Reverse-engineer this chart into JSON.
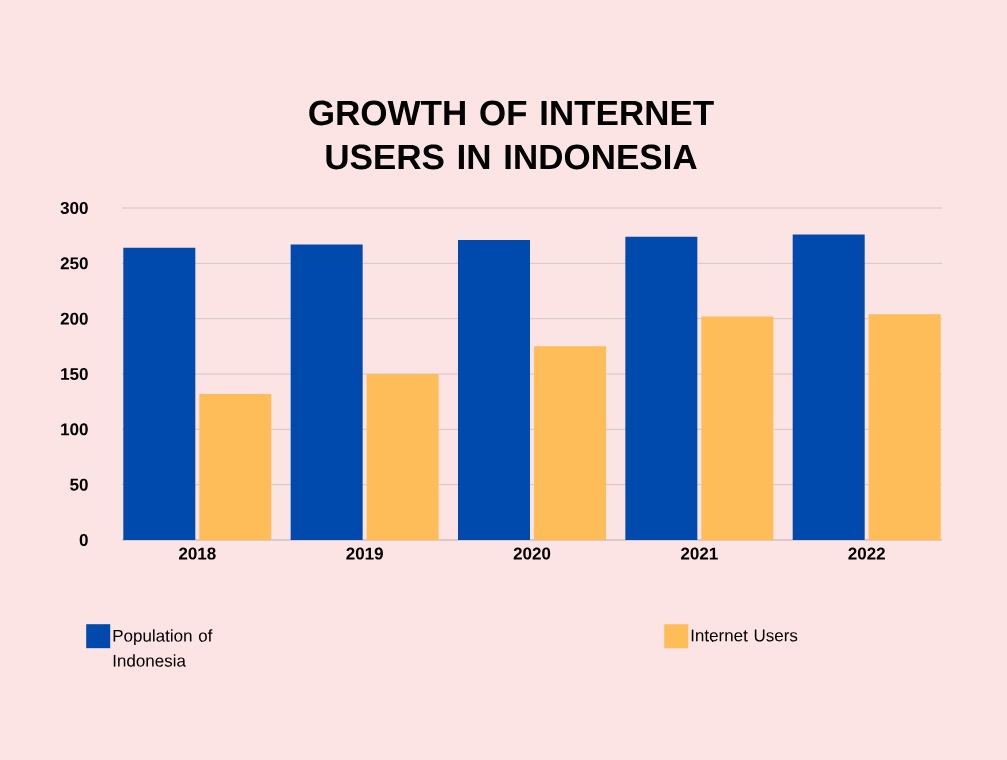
{
  "chart_data": {
    "type": "bar",
    "title": "GROWTH OF INTERNET USERS IN INDONESIA",
    "categories": [
      "2018",
      "2019",
      "2020",
      "2021",
      "2022"
    ],
    "series": [
      {
        "name": "Population of Indonesia",
        "color": "#004aad",
        "values": [
          264,
          267,
          271,
          274,
          276
        ]
      },
      {
        "name": "Internet Users",
        "color": "#ffbd59",
        "values": [
          132,
          150,
          175,
          202,
          204
        ]
      }
    ],
    "ylim": [
      0,
      300
    ],
    "yticks": [
      0,
      50,
      100,
      150,
      200,
      250,
      300
    ],
    "grid": "y",
    "legend": "bottom"
  }
}
